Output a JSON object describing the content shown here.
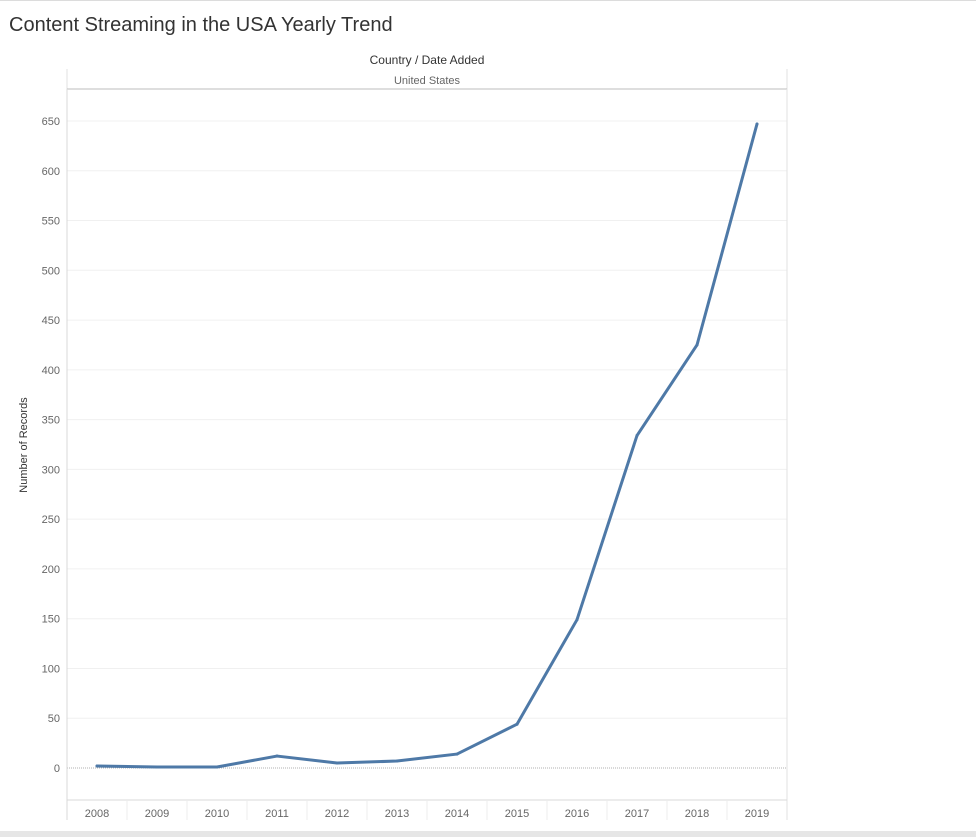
{
  "page": {
    "title": "Content Streaming in the USA Yearly Trend"
  },
  "chart_data": {
    "type": "line",
    "title": "Content Streaming in the USA Yearly Trend",
    "header_title": "Country / Date Added",
    "header_subtitle": "United States",
    "xlabel": "",
    "ylabel": "Number of Records",
    "categories": [
      "2008",
      "2009",
      "2010",
      "2011",
      "2012",
      "2013",
      "2014",
      "2015",
      "2016",
      "2017",
      "2018",
      "2019"
    ],
    "series": [
      {
        "values": [
          2,
          1,
          1,
          12,
          5,
          7,
          14,
          44,
          149,
          334,
          425,
          647
        ],
        "color": "#4e79a7"
      }
    ],
    "yticks": [
      0,
      50,
      100,
      150,
      200,
      250,
      300,
      350,
      400,
      450,
      500,
      550,
      600,
      650
    ],
    "ylim": [
      -35,
      680
    ],
    "grid": true,
    "legend": "none"
  }
}
